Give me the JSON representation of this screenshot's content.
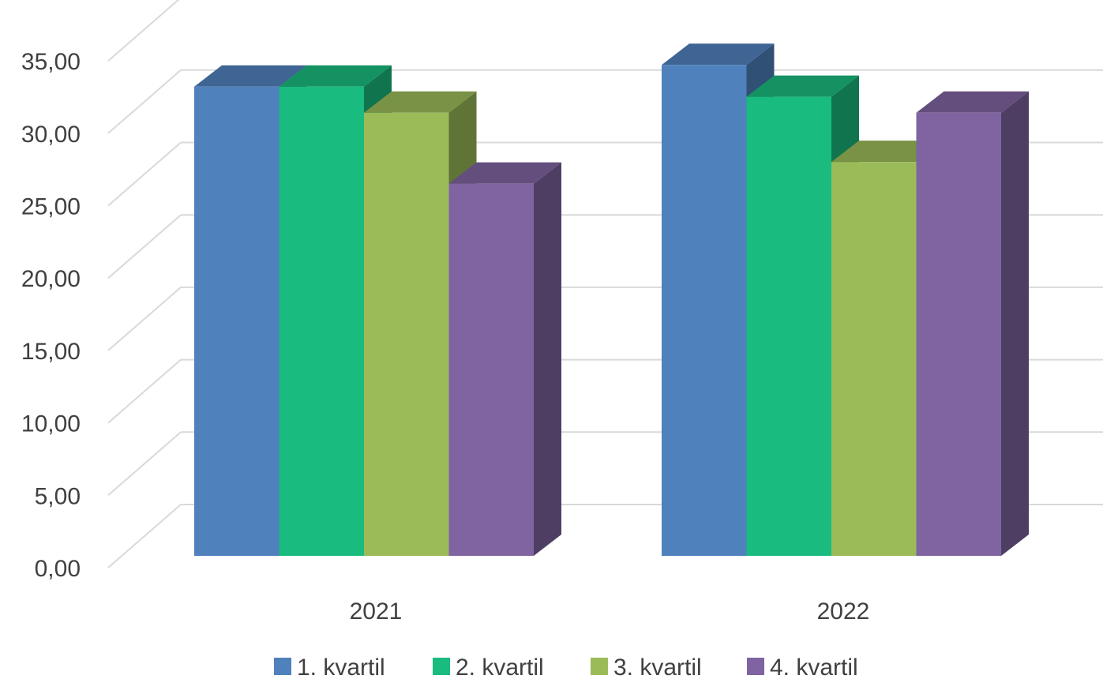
{
  "chart_data": {
    "type": "bar",
    "style": "3d-clustered-column",
    "categories": [
      "2021",
      "2022"
    ],
    "series": [
      {
        "name": "1. kvartil",
        "values": [
          32.4,
          33.9
        ],
        "color": "#4f81bd"
      },
      {
        "name": "2. kvartil",
        "values": [
          32.4,
          31.7
        ],
        "color": "#1abb7e"
      },
      {
        "name": "3. kvartil",
        "values": [
          30.6,
          27.2
        ],
        "color": "#9bbb59"
      },
      {
        "name": "4. kvartil",
        "values": [
          25.7,
          30.6
        ],
        "color": "#8064a2"
      }
    ],
    "ylim": [
      0,
      35
    ],
    "ytick_values": [
      0,
      5,
      10,
      15,
      20,
      25,
      30,
      35
    ],
    "ytick_labels": [
      "0,00",
      "5,00",
      "10,00",
      "15,00",
      "20,00",
      "25,00",
      "30,00",
      "35,00"
    ],
    "title": "",
    "xlabel": "",
    "ylabel": "",
    "grid": true,
    "legend_position": "bottom"
  }
}
